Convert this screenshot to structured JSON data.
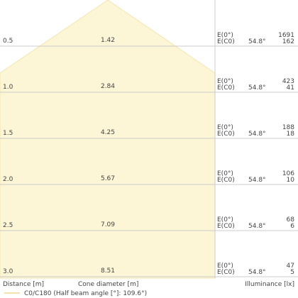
{
  "rows": [
    {
      "distance": "0.5",
      "diameter": "1.42",
      "e0_label": "E(0°)",
      "ec0_label": "E(C0)",
      "angle": "54.8°",
      "e0": "1691",
      "ec0": "162"
    },
    {
      "distance": "1.0",
      "diameter": "2.84",
      "e0_label": "E(0°)",
      "ec0_label": "E(C0)",
      "angle": "54.8°",
      "e0": "423",
      "ec0": "41"
    },
    {
      "distance": "1.5",
      "diameter": "4.25",
      "e0_label": "E(0°)",
      "ec0_label": "E(C0)",
      "angle": "54.8°",
      "e0": "188",
      "ec0": "18"
    },
    {
      "distance": "2.0",
      "diameter": "5.67",
      "e0_label": "E(0°)",
      "ec0_label": "E(C0)",
      "angle": "54.8°",
      "e0": "106",
      "ec0": "10"
    },
    {
      "distance": "2.5",
      "diameter": "7.09",
      "e0_label": "E(0°)",
      "ec0_label": "E(C0)",
      "angle": "54.8°",
      "e0": "68",
      "ec0": "6"
    },
    {
      "distance": "3.0",
      "diameter": "8.51",
      "e0_label": "E(0°)",
      "ec0_label": "E(C0)",
      "angle": "54.8°",
      "e0": "47",
      "ec0": "5"
    }
  ],
  "footer": {
    "distance": "Distance [m]",
    "diameter": "Cone diameter [m]",
    "illuminance": "Illuminance [lx]"
  },
  "legend": "C0/C180 (Half beam angle [°]: 109.6°)"
}
